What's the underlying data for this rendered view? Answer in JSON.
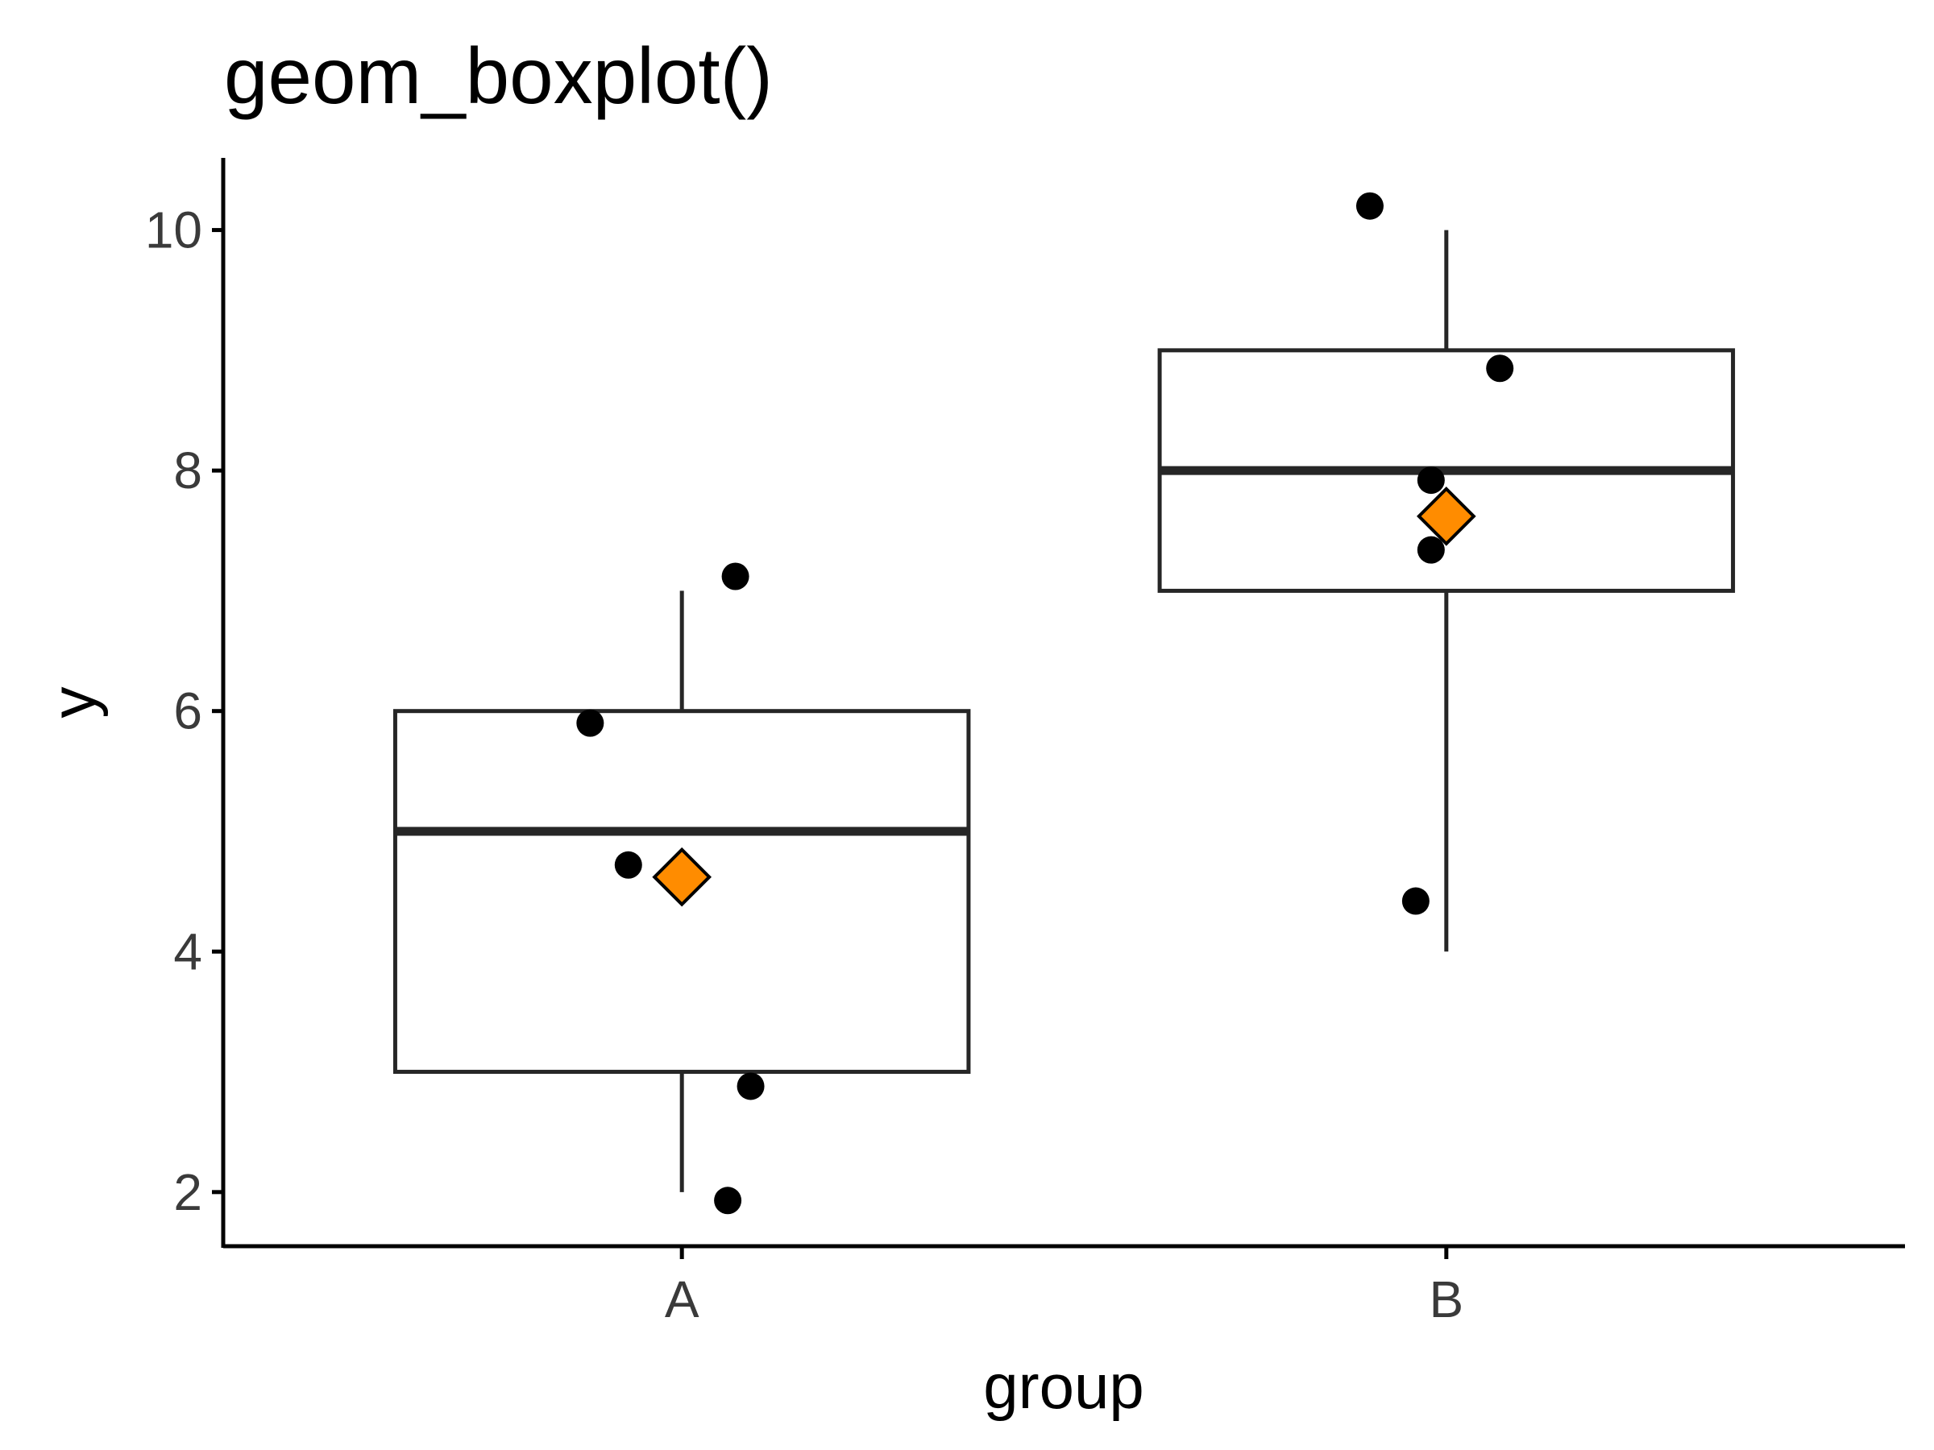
{
  "chart_data": {
    "type": "boxplot",
    "title": "geom_boxplot()",
    "xlabel": "group",
    "ylabel": "y",
    "categories": [
      "A",
      "B"
    ],
    "ylim": [
      1.55,
      10.6
    ],
    "yticks": [
      2,
      4,
      6,
      8,
      10
    ],
    "grid": false,
    "legend": "none",
    "boxes": [
      {
        "category": "A",
        "whisker_low": 2,
        "q1": 3,
        "median": 5,
        "q3": 6,
        "whisker_high": 7,
        "mean": 4.62
      },
      {
        "category": "B",
        "whisker_low": 4,
        "q1": 7,
        "median": 8,
        "q3": 9,
        "whisker_high": 10,
        "mean": 7.62
      }
    ],
    "points": [
      {
        "category": "A",
        "jitter": -0.12,
        "y": 5.9
      },
      {
        "category": "A",
        "jitter": 0.07,
        "y": 7.12
      },
      {
        "category": "A",
        "jitter": -0.07,
        "y": 4.72
      },
      {
        "category": "A",
        "jitter": 0.09,
        "y": 2.88
      },
      {
        "category": "A",
        "jitter": 0.06,
        "y": 1.93
      },
      {
        "category": "B",
        "jitter": -0.1,
        "y": 10.2
      },
      {
        "category": "B",
        "jitter": 0.07,
        "y": 8.85
      },
      {
        "category": "B",
        "jitter": -0.02,
        "y": 7.92
      },
      {
        "category": "B",
        "jitter": -0.02,
        "y": 7.34
      },
      {
        "category": "B",
        "jitter": -0.04,
        "y": 4.42
      }
    ],
    "colors": {
      "box_stroke": "#262626",
      "point": "#000000",
      "mean_fill": "#FF8C00",
      "mean_stroke": "#000000",
      "axis": "#000000"
    }
  }
}
